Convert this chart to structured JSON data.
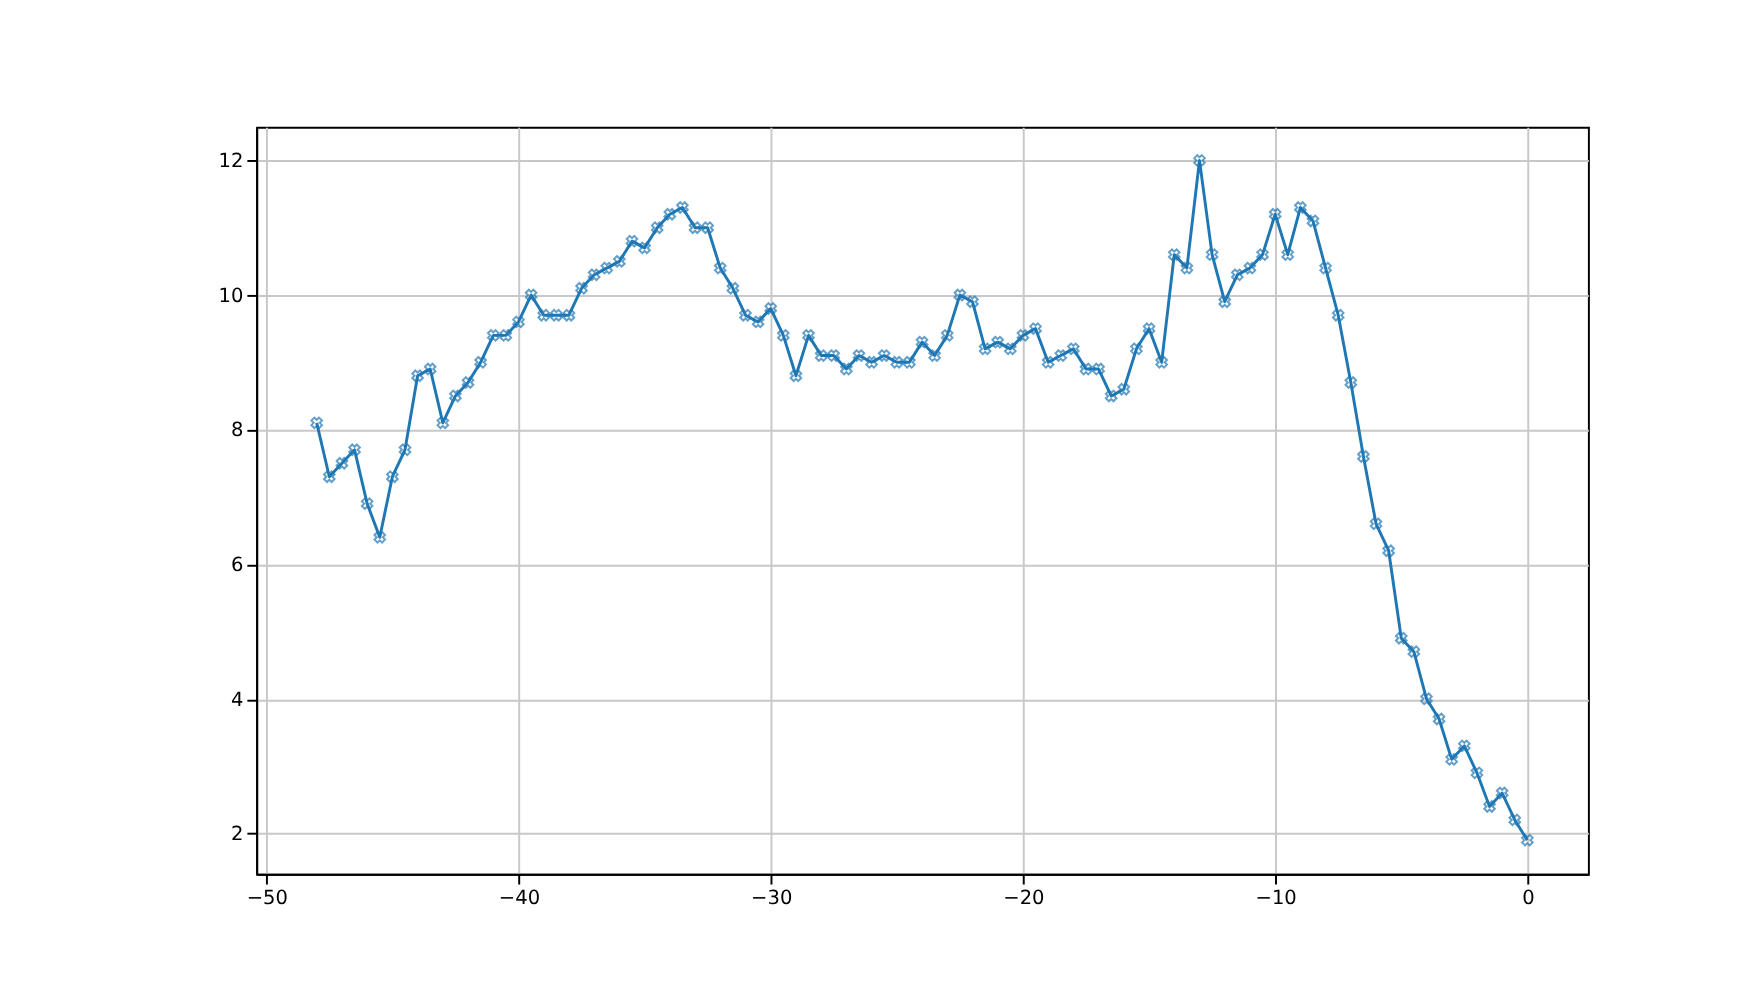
{
  "chart_data": {
    "type": "line",
    "x": [
      -48,
      -47.5,
      -47,
      -46.5,
      -46,
      -45.5,
      -45,
      -44.5,
      -44,
      -43.5,
      -43,
      -42.5,
      -42,
      -41.5,
      -41,
      -40.5,
      -40,
      -39.5,
      -39,
      -38.5,
      -38,
      -37.5,
      -37,
      -36.5,
      -36,
      -35.5,
      -35,
      -34.5,
      -34,
      -33.5,
      -33,
      -32.5,
      -32,
      -31.5,
      -31,
      -30.5,
      -30,
      -29.5,
      -29,
      -28.5,
      -28,
      -27.5,
      -27,
      -26.5,
      -26,
      -25.5,
      -25,
      -24.5,
      -24,
      -23.5,
      -23,
      -22.5,
      -22,
      -21.5,
      -21,
      -20.5,
      -20,
      -19.5,
      -19,
      -18.5,
      -18,
      -17.5,
      -17,
      -16.5,
      -16,
      -15.5,
      -15,
      -14.5,
      -14,
      -13.5,
      -13,
      -12.5,
      -12,
      -11.5,
      -11,
      -10.5,
      -10,
      -9.5,
      -9,
      -8.5,
      -8,
      -7.5,
      -7,
      -6.5,
      -6,
      -5.5,
      -5,
      -4.5,
      -4,
      -3.5,
      -3,
      -2.5,
      -2,
      -1.5,
      -1,
      -0.5,
      0
    ],
    "series": [
      {
        "color": "#1f77b4",
        "values": [
          8.1,
          7.3,
          7.5,
          7.7,
          6.9,
          6.4,
          7.3,
          7.7,
          8.8,
          8.9,
          8.1,
          8.5,
          8.7,
          9.0,
          9.4,
          9.4,
          9.6,
          10.0,
          9.7,
          9.7,
          9.7,
          10.1,
          10.3,
          10.4,
          10.5,
          10.8,
          10.7,
          11.0,
          11.2,
          11.3,
          11.0,
          11.0,
          10.4,
          10.1,
          9.7,
          9.6,
          9.8,
          9.4,
          8.8,
          9.4,
          9.1,
          9.1,
          8.9,
          9.1,
          9.0,
          9.1,
          9.0,
          9.0,
          9.3,
          9.1,
          9.4,
          10.0,
          9.9,
          9.2,
          9.3,
          9.2,
          9.4,
          9.5,
          9.0,
          9.1,
          9.2,
          8.9,
          8.9,
          8.5,
          8.6,
          9.2,
          9.5,
          9.0,
          10.6,
          10.4,
          12.0,
          10.6,
          9.9,
          10.3,
          10.4,
          10.6,
          11.2,
          10.6,
          11.3,
          11.1,
          10.4,
          9.7,
          8.7,
          7.6,
          6.6,
          6.2,
          4.9,
          4.7,
          4.0,
          3.7,
          3.1,
          3.3,
          2.9,
          2.4,
          2.6,
          2.2,
          1.9
        ]
      }
    ],
    "xlim": [
      -50.4,
      2.4
    ],
    "ylim": [
      1.4,
      12.5
    ],
    "xticks": [
      -50,
      -40,
      -30,
      -20,
      -10,
      0
    ],
    "yticks": [
      2,
      4,
      6,
      8,
      10,
      12
    ],
    "grid": true,
    "marker": "cross",
    "line_style": "solid"
  }
}
